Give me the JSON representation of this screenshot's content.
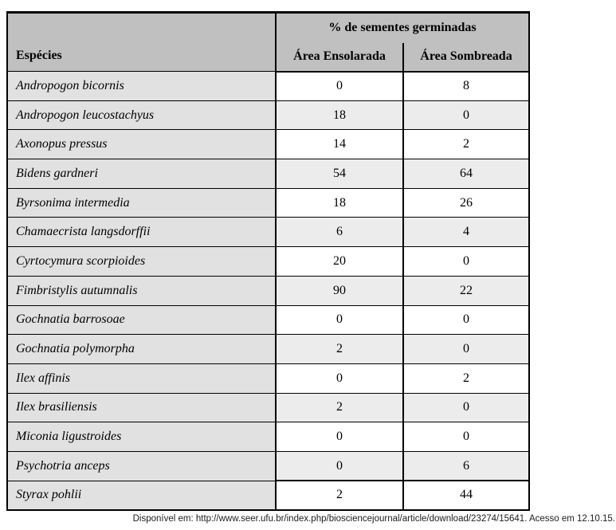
{
  "chart_data": {
    "type": "table",
    "title": "% de sementes germinadas",
    "columns": [
      "Espécies",
      "Área Ensolarada",
      "Área Sombreada"
    ],
    "rows": [
      [
        "Andropogon bicornis",
        0,
        8
      ],
      [
        "Andropogon leucostachyus",
        18,
        0
      ],
      [
        "Axonopus pressus",
        14,
        2
      ],
      [
        "Bidens gardneri",
        54,
        64
      ],
      [
        "Byrsonima intermedia",
        18,
        26
      ],
      [
        "Chamaecrista langsdorffii",
        6,
        4
      ],
      [
        "Cyrtocymura scorpioides",
        20,
        0
      ],
      [
        "Fimbristylis autumnalis",
        90,
        22
      ],
      [
        "Gochnatia barrosoae",
        0,
        0
      ],
      [
        "Gochnatia polymorpha",
        2,
        0
      ],
      [
        "Ilex affinis",
        0,
        2
      ],
      [
        "Ilex brasiliensis",
        2,
        0
      ],
      [
        "Miconia ligustroides",
        0,
        0
      ],
      [
        "Psychotria anceps",
        0,
        6
      ],
      [
        "Styrax pohlii",
        2,
        44
      ]
    ]
  },
  "table": {
    "header": {
      "species_label": "Espécies",
      "group_label": "% de sementes germinadas",
      "sun_label": "Área Ensolarada",
      "shade_label": "Área Sombreada"
    },
    "rows": [
      {
        "species": "Andropogon bicornis",
        "sun": "0",
        "shade": "8"
      },
      {
        "species": "Andropogon leucostachyus",
        "sun": "18",
        "shade": "0"
      },
      {
        "species": "Axonopus pressus",
        "sun": "14",
        "shade": "2"
      },
      {
        "species": "Bidens gardneri",
        "sun": "54",
        "shade": "64"
      },
      {
        "species": "Byrsonima intermedia",
        "sun": "18",
        "shade": "26"
      },
      {
        "species": "Chamaecrista langsdorffii",
        "sun": "6",
        "shade": "4"
      },
      {
        "species": "Cyrtocymura scorpioides",
        "sun": "20",
        "shade": "0"
      },
      {
        "species": "Fimbristylis autumnalis",
        "sun": "90",
        "shade": "22"
      },
      {
        "species": "Gochnatia barrosoae",
        "sun": "0",
        "shade": "0"
      },
      {
        "species": "Gochnatia polymorpha",
        "sun": "2",
        "shade": "0"
      },
      {
        "species": "Ilex affinis",
        "sun": "0",
        "shade": "2"
      },
      {
        "species": "Ilex brasiliensis",
        "sun": "2",
        "shade": "0"
      },
      {
        "species": "Miconia ligustroides",
        "sun": "0",
        "shade": "0"
      },
      {
        "species": "Psychotria anceps",
        "sun": "0",
        "shade": "6"
      },
      {
        "species": "Styrax pohlii",
        "sun": "2",
        "shade": "44"
      }
    ]
  },
  "source_line": "Disponível em: http://www.seer.ufu.br/index.php/biosciencejournal/article/download/23274/15641. Acesso em 12.10.15.",
  "colors": {
    "header_bg": "#c0c0c0",
    "species_column_bg": "#e1e1e1",
    "shaded_row_bg": "#ececec",
    "border": "#000000"
  }
}
